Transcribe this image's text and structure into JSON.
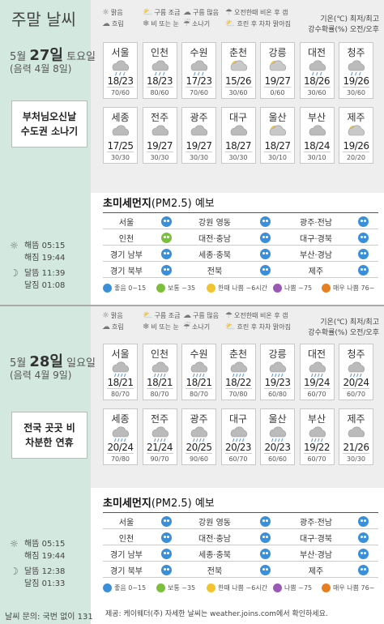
{
  "title": "주말 날씨",
  "legend": {
    "items": [
      {
        "icon": "sun-icon",
        "label": "맑음"
      },
      {
        "icon": "partly-cloudy-icon",
        "label": "구름 조금"
      },
      {
        "icon": "cloudy-icon",
        "label": "구름 많음"
      },
      {
        "icon": "morning-rain-icon",
        "label": "오전한때 비온 후 갬"
      },
      {
        "icon": "overcast-icon",
        "label": "흐림"
      },
      {
        "icon": "rain-snow-icon",
        "label": "비 또는 눈"
      },
      {
        "icon": "shower-icon",
        "label": "소나기"
      },
      {
        "icon": "clearing-icon",
        "label": "흐린 후 차차 맑아짐"
      }
    ],
    "unit_line1": "기온(℃) 최저/최고",
    "unit_line2": "강수확률(%) 오전/오후"
  },
  "dust_legend": [
    {
      "label": "좋음 0~15",
      "color": "#3b8ed8"
    },
    {
      "label": "보통 ~35",
      "color": "#7cbf3c"
    },
    {
      "label": "한때 나쁨 ~6시간",
      "color": "#f2c530"
    },
    {
      "label": "나쁨 ~75",
      "color": "#9b59b6"
    },
    {
      "label": "매우 나쁨 76~",
      "color": "#e67e22"
    }
  ],
  "dust_title_bold": "초미세먼지",
  "dust_title_rest": "(PM2.5) 예보",
  "days": [
    {
      "date_month": "5월",
      "date_day": "27일",
      "weekday": "토요일",
      "lunar": "(음력 4월 8일)",
      "headline_1": "부처님오신날",
      "headline_2": "수도권 소나기",
      "sunrise_label": "해뜸",
      "sunrise": "05:15",
      "sunset_label": "해짐",
      "sunset": "19:44",
      "moonrise_label": "달뜸",
      "moonrise": "11:39",
      "moonset_label": "달짐",
      "moonset": "01:08",
      "cities": [
        {
          "name": "서울",
          "icon": "shower",
          "temp": "18/23",
          "prob": "70/60"
        },
        {
          "name": "인천",
          "icon": "shower",
          "temp": "18/23",
          "prob": "80/60"
        },
        {
          "name": "수원",
          "icon": "shower",
          "temp": "17/23",
          "prob": "70/60"
        },
        {
          "name": "춘천",
          "icon": "partly",
          "temp": "15/26",
          "prob": "30/60"
        },
        {
          "name": "강릉",
          "icon": "partly",
          "temp": "19/27",
          "prob": "0/60"
        },
        {
          "name": "대전",
          "icon": "shower",
          "temp": "18/26",
          "prob": "30/60"
        },
        {
          "name": "청주",
          "icon": "shower",
          "temp": "19/26",
          "prob": "30/60"
        },
        {
          "name": "세종",
          "icon": "cloudy",
          "temp": "17/25",
          "prob": "30/30"
        },
        {
          "name": "전주",
          "icon": "cloudy",
          "temp": "19/27",
          "prob": "30/30"
        },
        {
          "name": "광주",
          "icon": "cloudy",
          "temp": "19/27",
          "prob": "30/30"
        },
        {
          "name": "대구",
          "icon": "cloudy",
          "temp": "18/27",
          "prob": "30/30"
        },
        {
          "name": "울산",
          "icon": "partly",
          "temp": "18/27",
          "prob": "30/10"
        },
        {
          "name": "부산",
          "icon": "cloudy",
          "temp": "18/24",
          "prob": "30/10"
        },
        {
          "name": "제주",
          "icon": "partly",
          "temp": "19/26",
          "prob": "20/20"
        }
      ],
      "dust": [
        [
          "서울",
          "b",
          "강원 영동",
          "b",
          "광주·전남",
          "b"
        ],
        [
          "인천",
          "g",
          "대전·충남",
          "b",
          "대구·경북",
          "b"
        ],
        [
          "경기 남부",
          "b",
          "세종·충북",
          "b",
          "부산·경남",
          "b"
        ],
        [
          "경기 북부",
          "b",
          "전북",
          "b",
          "제주",
          "b"
        ]
      ]
    },
    {
      "date_month": "5월",
      "date_day": "28일",
      "weekday": "일요일",
      "lunar": "(음력 4월 9일)",
      "headline_1": "전국 곳곳 비",
      "headline_2": "차분한 연휴",
      "sunrise_label": "해뜸",
      "sunrise": "05:15",
      "sunset_label": "해짐",
      "sunset": "19:44",
      "moonrise_label": "달뜸",
      "moonrise": "12:38",
      "moonset_label": "달짐",
      "moonset": "01:33",
      "cities": [
        {
          "name": "서울",
          "icon": "rain",
          "temp": "18/21",
          "prob": "80/70"
        },
        {
          "name": "인천",
          "icon": "rain",
          "temp": "18/21",
          "prob": "80/70"
        },
        {
          "name": "수원",
          "icon": "rain",
          "temp": "18/21",
          "prob": "80/70"
        },
        {
          "name": "춘천",
          "icon": "rain",
          "temp": "18/22",
          "prob": "70/80"
        },
        {
          "name": "강릉",
          "icon": "rain",
          "temp": "19/23",
          "prob": "60/80"
        },
        {
          "name": "대전",
          "icon": "rain",
          "temp": "19/24",
          "prob": "60/70"
        },
        {
          "name": "청주",
          "icon": "rain",
          "temp": "20/24",
          "prob": "60/70"
        },
        {
          "name": "세종",
          "icon": "rain",
          "temp": "20/24",
          "prob": "70/80"
        },
        {
          "name": "전주",
          "icon": "rain",
          "temp": "21/24",
          "prob": "90/70"
        },
        {
          "name": "광주",
          "icon": "rain",
          "temp": "20/25",
          "prob": "90/60"
        },
        {
          "name": "대구",
          "icon": "rain",
          "temp": "20/23",
          "prob": "60/70"
        },
        {
          "name": "울산",
          "icon": "rain",
          "temp": "20/23",
          "prob": "60/60"
        },
        {
          "name": "부산",
          "icon": "rain",
          "temp": "19/22",
          "prob": "60/70"
        },
        {
          "name": "제주",
          "icon": "cloudy",
          "temp": "21/26",
          "prob": "30/30"
        }
      ],
      "dust": [
        [
          "서울",
          "b",
          "강원 영동",
          "b",
          "광주·전남",
          "b"
        ],
        [
          "인천",
          "b",
          "대전·충남",
          "b",
          "대구·경북",
          "b"
        ],
        [
          "경기 남부",
          "b",
          "세종·충북",
          "b",
          "부산·경남",
          "b"
        ],
        [
          "경기 북부",
          "b",
          "전북",
          "b",
          "제주",
          "b"
        ]
      ]
    }
  ],
  "footer": "날씨 문의: 국번 없이 131",
  "credit": "제공: 케이웨더(주) 자세한 날씨는 weather.joins.com에서 확인하세요."
}
